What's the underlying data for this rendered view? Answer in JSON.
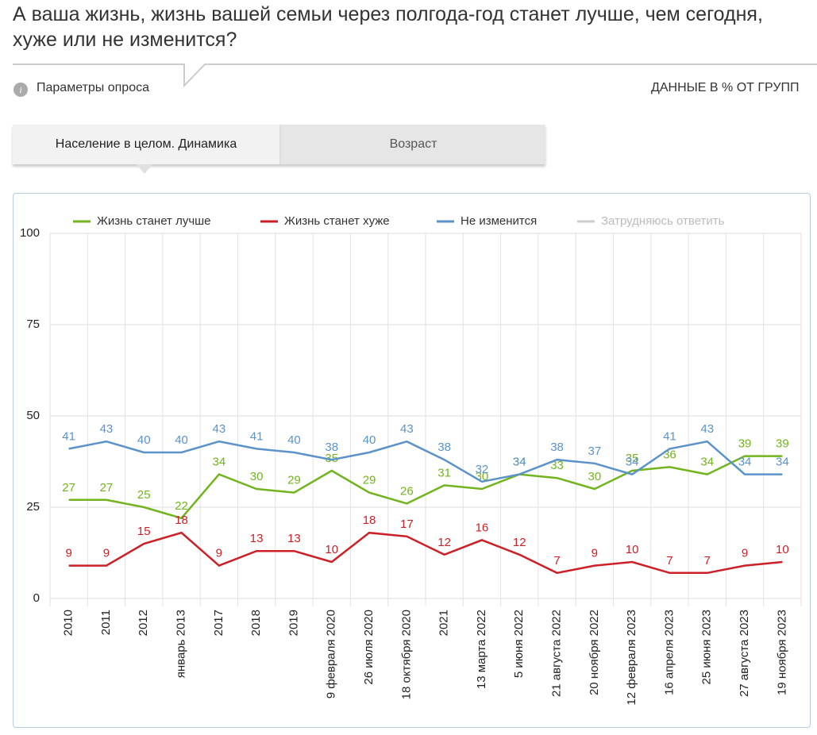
{
  "header": {
    "title": "А ваша жизнь, жизнь вашей семьи через полгода-год станет лучше, чем сегодня, хуже или не изменится?",
    "params": "Параметры опроса",
    "units": "ДАННЫЕ В % ОТ ГРУПП"
  },
  "tabs": [
    "Население в целом. Динамика",
    "Возраст"
  ],
  "chart_data": {
    "type": "line",
    "categories": [
      "2010",
      "2011",
      "2012",
      "январь 2013",
      "2017",
      "2018",
      "2019",
      "9 февраля 2020",
      "26 июля 2020",
      "18 октября 2020",
      "2021",
      "13 марта 2022",
      "5 июня 2022",
      "21 августа 2022",
      "20 ноября 2022",
      "12 февраля 2023",
      "16 апреля 2023",
      "25 июня 2023",
      "27 августа 2023",
      "19 ноября 2023"
    ],
    "series": [
      {
        "name": "Жизнь станет лучше",
        "color": "#72b41e",
        "values": [
          27,
          27,
          25,
          22,
          34,
          30,
          29,
          35,
          29,
          26,
          31,
          30,
          34,
          33,
          30,
          35,
          36,
          34,
          39,
          39
        ]
      },
      {
        "name": "Жизнь станет хуже",
        "color": "#cc1f26",
        "values": [
          9,
          9,
          15,
          18,
          9,
          13,
          13,
          10,
          18,
          17,
          12,
          16,
          12,
          7,
          9,
          10,
          7,
          7,
          9,
          10
        ]
      },
      {
        "name": "Не изменится",
        "color": "#5b93c9",
        "values": [
          41,
          43,
          40,
          40,
          43,
          41,
          40,
          38,
          40,
          43,
          38,
          32,
          34,
          38,
          37,
          34,
          41,
          43,
          34,
          34
        ]
      },
      {
        "name": "Затрудняюсь ответить",
        "color": "#cccccc",
        "hidden": true,
        "values": [
          null,
          null,
          null,
          null,
          null,
          null,
          null,
          null,
          null,
          null,
          null,
          null,
          null,
          null,
          null,
          null,
          null,
          null,
          null,
          null
        ]
      }
    ],
    "ylim": [
      0,
      100
    ],
    "yticks": [
      0,
      25,
      50,
      75,
      100
    ],
    "grid": true
  }
}
